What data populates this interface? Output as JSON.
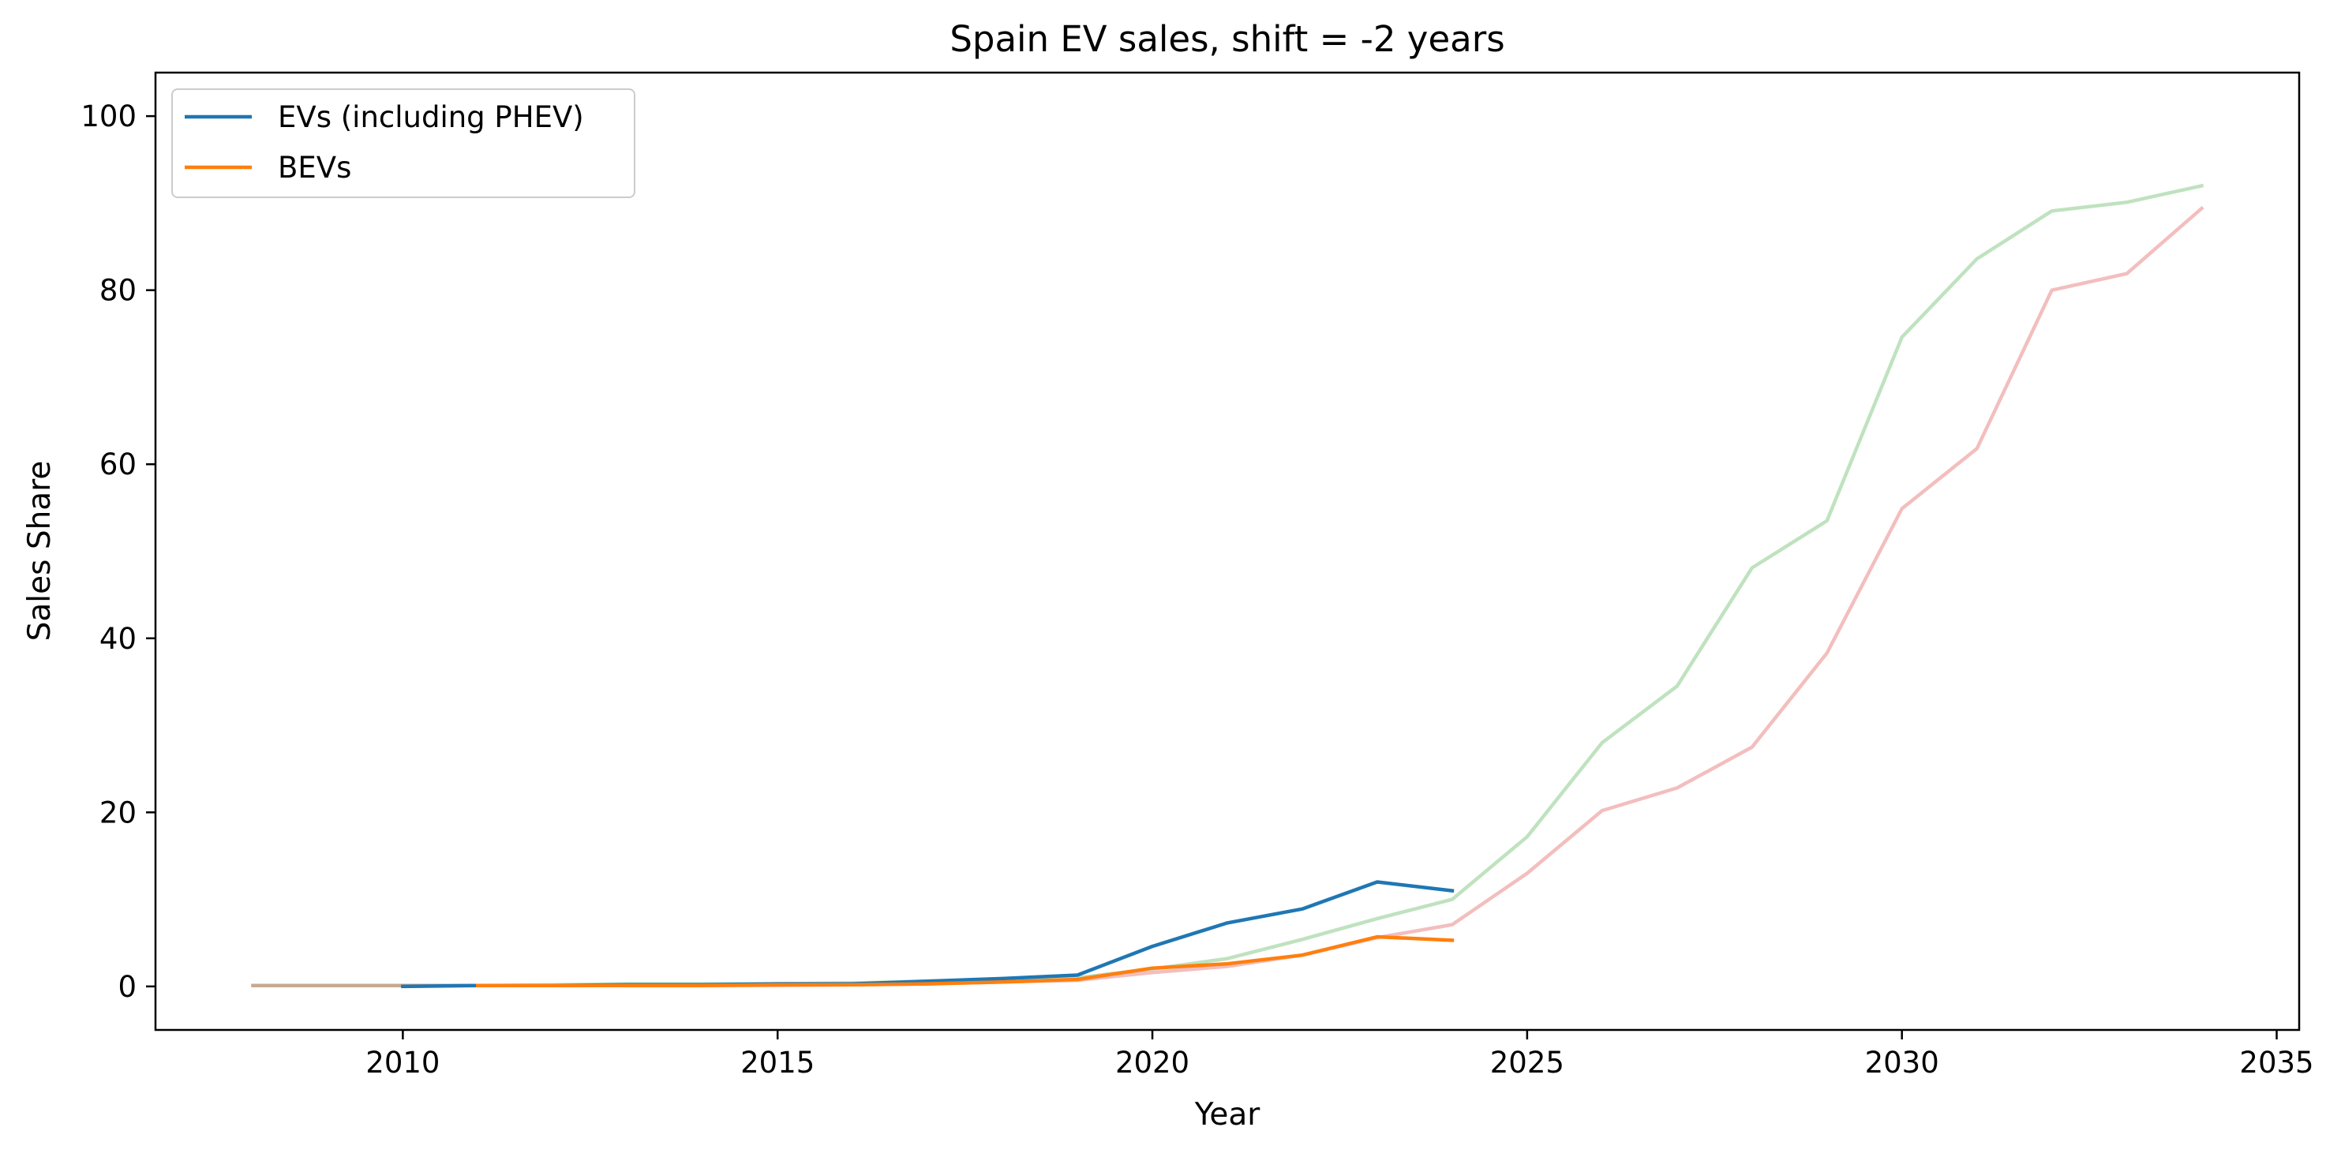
{
  "chart_data": {
    "type": "line",
    "title": "Spain EV sales, shift = -2 years",
    "xlabel": "Year",
    "ylabel": "Sales Share",
    "xlim": [
      2006.7,
      2035.3
    ],
    "ylim": [
      -5,
      105
    ],
    "xticks": [
      2010,
      2015,
      2020,
      2025,
      2030,
      2035
    ],
    "yticks": [
      0,
      20,
      40,
      60,
      80,
      100
    ],
    "grid": false,
    "legend": {
      "position": "top-left",
      "entries": [
        "EVs (including PHEV)",
        "BEVs"
      ]
    },
    "series": [
      {
        "name": "EVs (including PHEV)",
        "color": "#1f77b4",
        "opacity": 1,
        "x": [
          2010,
          2011,
          2012,
          2013,
          2014,
          2015,
          2016,
          2017,
          2018,
          2019,
          2020,
          2021,
          2022,
          2023,
          2024
        ],
        "y": [
          0.0,
          0.1,
          0.1,
          0.2,
          0.2,
          0.3,
          0.3,
          0.6,
          0.9,
          1.3,
          4.6,
          7.3,
          8.9,
          12.0,
          11.0
        ]
      },
      {
        "name": "BEVs",
        "color": "#ff7f0e",
        "opacity": 1,
        "x": [
          2011,
          2012,
          2013,
          2014,
          2015,
          2016,
          2017,
          2018,
          2019,
          2020,
          2021,
          2022,
          2023,
          2024
        ],
        "y": [
          0.1,
          0.1,
          0.1,
          0.1,
          0.2,
          0.2,
          0.3,
          0.5,
          0.8,
          2.1,
          2.6,
          3.6,
          5.7,
          5.3
        ]
      },
      {
        "color": "#2ca02c",
        "opacity": 0.3,
        "x": [
          2008,
          2009,
          2010,
          2011,
          2012,
          2013,
          2014,
          2015,
          2016,
          2017,
          2018,
          2019,
          2020,
          2021,
          2022,
          2023,
          2024,
          2025,
          2026,
          2027,
          2028,
          2029,
          2030,
          2031,
          2032,
          2033,
          2034
        ],
        "y": [
          0.1,
          0.1,
          0.1,
          0.1,
          0.2,
          0.3,
          0.3,
          0.3,
          0.4,
          0.6,
          0.8,
          1.0,
          2.0,
          3.2,
          5.4,
          7.8,
          10.0,
          17.2,
          28.0,
          34.5,
          48.1,
          53.5,
          74.6,
          83.6,
          89.1,
          90.1,
          92.0
        ]
      },
      {
        "color": "#d62728",
        "opacity": 0.3,
        "x": [
          2008,
          2009,
          2010,
          2011,
          2012,
          2013,
          2014,
          2015,
          2016,
          2017,
          2018,
          2019,
          2020,
          2021,
          2022,
          2023,
          2024,
          2025,
          2026,
          2027,
          2028,
          2029,
          2030,
          2031,
          2032,
          2033,
          2034
        ],
        "y": [
          0.1,
          0.1,
          0.1,
          0.1,
          0.1,
          0.1,
          0.1,
          0.1,
          0.2,
          0.3,
          0.5,
          0.7,
          1.6,
          2.3,
          3.6,
          5.6,
          7.1,
          13.0,
          20.2,
          22.8,
          27.5,
          38.3,
          54.9,
          61.8,
          80.0,
          81.9,
          89.4
        ]
      }
    ]
  }
}
